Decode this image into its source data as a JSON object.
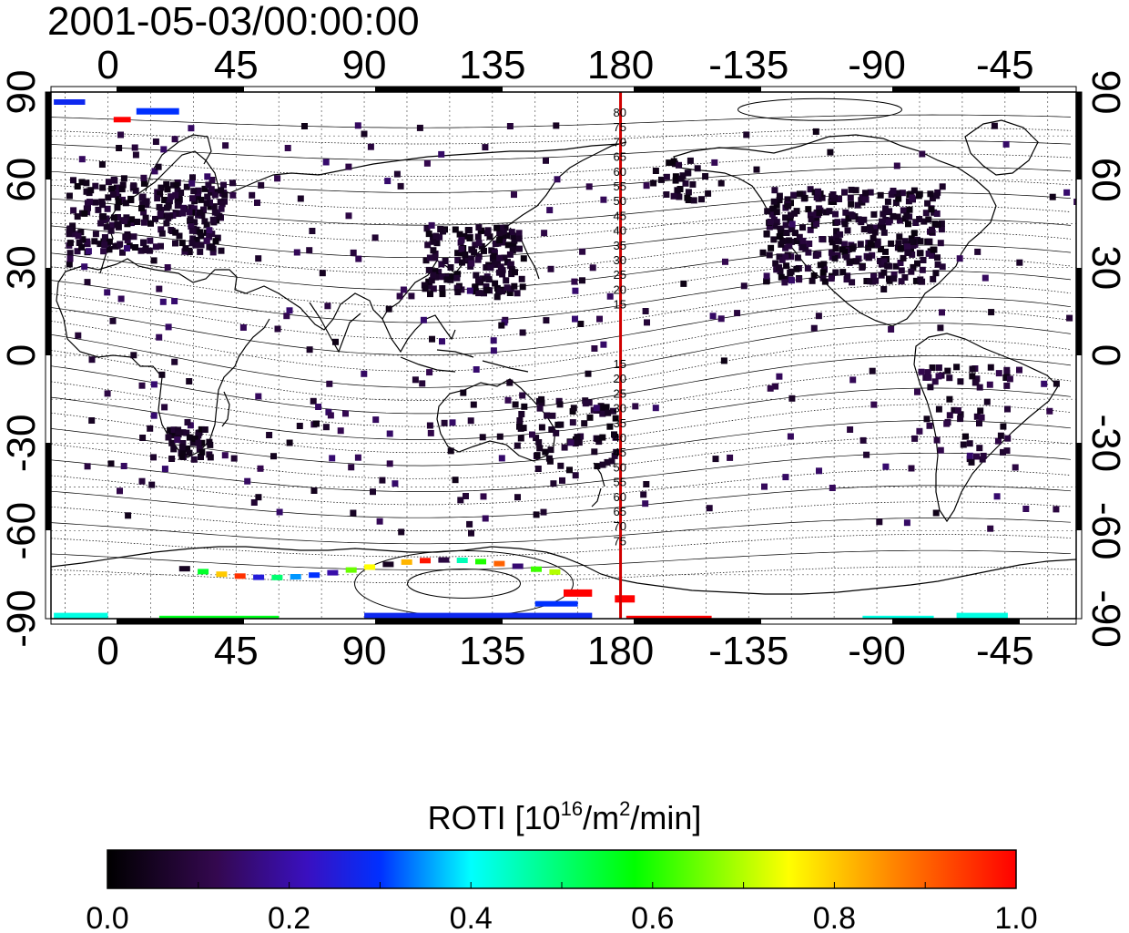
{
  "header": {
    "timestamp": "2001-05-03/00:00:00"
  },
  "map": {
    "projection": "equirectangular",
    "lon_ticks": [
      0,
      45,
      90,
      135,
      180,
      -135,
      -90,
      -45
    ],
    "lat_ticks": [
      90,
      60,
      30,
      0,
      -30,
      -60,
      -90
    ],
    "grid": "dotted 15° lines",
    "terminator_meridian": 180,
    "terminator_color": "#d00000",
    "contour_labels_north": [
      "80",
      "75",
      "70",
      "65",
      "60",
      "55",
      "50",
      "45",
      "40",
      "35",
      "30",
      "25",
      "20",
      "15"
    ],
    "contour_labels_south": [
      "15",
      "20",
      "25",
      "30",
      "35",
      "40",
      "45",
      "50",
      "55",
      "60",
      "65",
      "70",
      "75"
    ]
  },
  "colorbar": {
    "title_prefix": "ROTI  [10",
    "title_sup1": "16",
    "title_mid": "/m",
    "title_sup2": "2",
    "title_suffix": "/min]",
    "min": 0.0,
    "max": 1.0,
    "tick_labels": [
      "0.0",
      "0.2",
      "0.4",
      "0.6",
      "0.8",
      "1.0"
    ],
    "colors": [
      "#000000",
      "#3a0a5e",
      "#0000ff",
      "#00ffff",
      "#00ff00",
      "#ffff00",
      "#ff8000",
      "#ff0000"
    ]
  },
  "data_regions": [
    {
      "region": "Europe",
      "level": 0.08
    },
    {
      "region": "North America",
      "level": 0.06
    },
    {
      "region": "East Asia",
      "level": 0.06
    },
    {
      "region": "Southern Africa",
      "level": 0.05
    },
    {
      "region": "Australia",
      "level": 0.05
    },
    {
      "region": "South America",
      "level": 0.08
    },
    {
      "region": "Antarctic coast",
      "level": 0.5
    }
  ]
}
